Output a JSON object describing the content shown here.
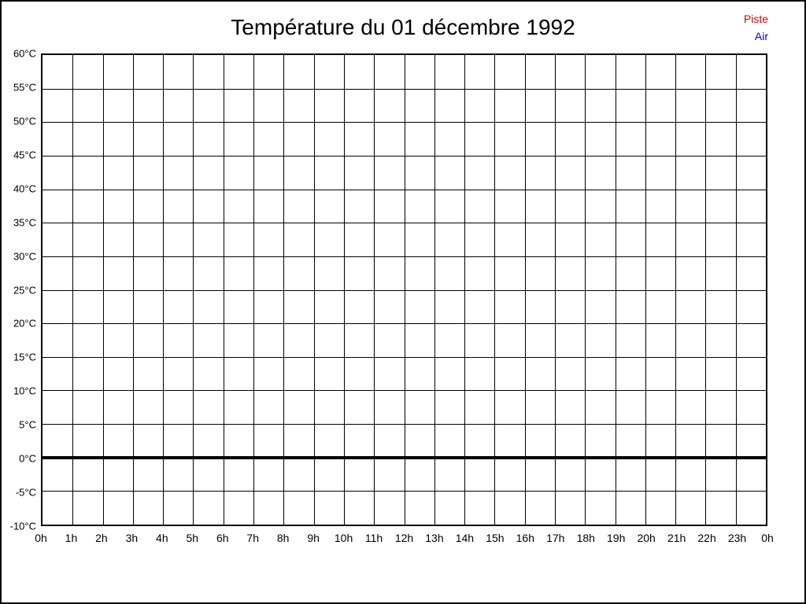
{
  "page": {
    "title": "Température du 01 décembre 1992"
  },
  "chart_data": {
    "type": "line",
    "title": "Température du 01 décembre 1992",
    "x_ticks": [
      "0h",
      "1h",
      "2h",
      "3h",
      "4h",
      "5h",
      "6h",
      "7h",
      "8h",
      "9h",
      "10h",
      "11h",
      "12h",
      "13h",
      "14h",
      "15h",
      "16h",
      "17h",
      "18h",
      "19h",
      "20h",
      "21h",
      "22h",
      "23h",
      "0h"
    ],
    "y_ticks": [
      "60°C",
      "55°C",
      "50°C",
      "45°C",
      "40°C",
      "35°C",
      "30°C",
      "25°C",
      "20°C",
      "15°C",
      "10°C",
      "5°C",
      "0°C",
      "-5°C",
      "-10°C"
    ],
    "ylim": [
      -10,
      60
    ],
    "y_step": 5,
    "x_intervals": 24,
    "grid": true,
    "zero_line_value": 0,
    "legend_position": "top-right",
    "series": [
      {
        "name": "Piste",
        "color": "#e00000",
        "values": []
      },
      {
        "name": "Air",
        "color": "#0000e0",
        "values": []
      }
    ],
    "colors": {
      "grid": "#000000",
      "axis": "#000000",
      "zero_line": "#000000",
      "background": "#ffffff"
    }
  }
}
